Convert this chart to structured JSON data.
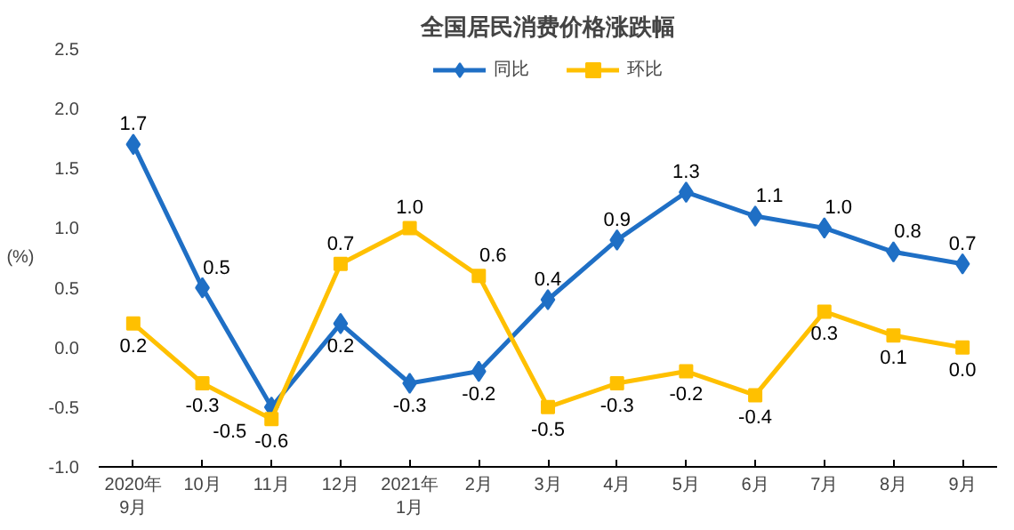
{
  "chart_data": {
    "type": "line",
    "title": "全国居民消费价格涨跌幅",
    "ylabel": "(%)",
    "categories": [
      "2020年\n9月",
      "10月",
      "11月",
      "12月",
      "2021年\n1月",
      "2月",
      "3月",
      "4月",
      "5月",
      "6月",
      "7月",
      "8月",
      "9月"
    ],
    "series": [
      {
        "name": "同比",
        "color": "#1f6fc5",
        "marker": "diamond",
        "values": [
          1.7,
          0.5,
          -0.5,
          0.2,
          -0.3,
          -0.2,
          0.4,
          0.9,
          1.3,
          1.1,
          1.0,
          0.8,
          0.7
        ],
        "value_labels": [
          "1.7",
          "0.5",
          "-0.5",
          "0.2",
          "-0.3",
          "-0.2",
          "0.4",
          "0.9",
          "1.3",
          "1.1",
          "1.0",
          "0.8",
          "0.7"
        ]
      },
      {
        "name": "环比",
        "color": "#ffc000",
        "marker": "square",
        "values": [
          0.2,
          -0.3,
          -0.6,
          0.7,
          1.0,
          0.6,
          -0.5,
          -0.3,
          -0.2,
          -0.4,
          0.3,
          0.1,
          0.0
        ],
        "value_labels": [
          "0.2",
          "-0.3",
          "-0.6",
          "0.7",
          "1.0",
          "0.6",
          "-0.5",
          "-0.3",
          "-0.2",
          "-0.4",
          "0.3",
          "0.1",
          "0.0"
        ]
      }
    ],
    "ylim": [
      -1.0,
      2.5
    ],
    "yticks": [
      {
        "value": -1.0,
        "label": "-1.0"
      },
      {
        "value": -0.5,
        "label": "-0.5"
      },
      {
        "value": 0.0,
        "label": "0.0"
      },
      {
        "value": 0.5,
        "label": "0.5"
      },
      {
        "value": 1.0,
        "label": "1.0"
      },
      {
        "value": 1.5,
        "label": "1.5"
      },
      {
        "value": 2.0,
        "label": "2.0"
      },
      {
        "value": 2.5,
        "label": "2.5"
      }
    ],
    "legend": "top",
    "grid": false,
    "line_style": "solid"
  }
}
